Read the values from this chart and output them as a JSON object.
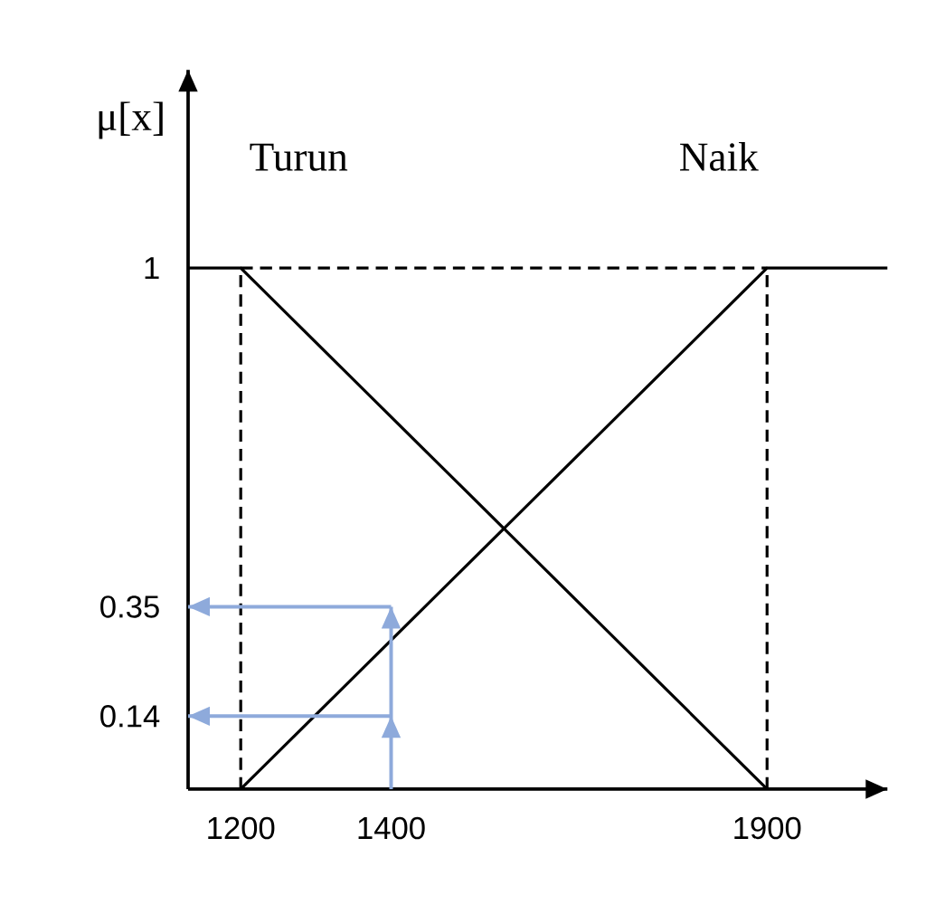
{
  "chart_data": {
    "type": "line",
    "ylabel": "μ[x]",
    "xlim": [
      1130,
      2060
    ],
    "ylim": [
      0,
      1.38
    ],
    "xticks": [
      1200,
      1400,
      1900
    ],
    "yticks": [
      0.14,
      0.35,
      1
    ],
    "grid": false,
    "legend": false,
    "marker": "none",
    "series": [
      {
        "name": "Turun",
        "color": "#000000",
        "x": [
          1130,
          1200,
          1900
        ],
        "values": [
          1,
          1,
          0
        ]
      },
      {
        "name": "Naik",
        "color": "#000000",
        "x": [
          1200,
          1900,
          2060
        ],
        "values": [
          0,
          1,
          1
        ]
      },
      {
        "color": "#000000",
        "line_style": "dashed",
        "x": [
          1200,
          1200
        ],
        "values": [
          0,
          1
        ]
      },
      {
        "color": "#000000",
        "line_style": "dashed",
        "x": [
          1900,
          1900
        ],
        "values": [
          0,
          1
        ]
      },
      {
        "color": "#000000",
        "line_style": "dashed",
        "x": [
          1200,
          1900
        ],
        "values": [
          1,
          1
        ]
      },
      {
        "color": "#8eaadb",
        "x": [
          1400,
          1400,
          1400
        ],
        "values": [
          0,
          0.14,
          0.35
        ]
      },
      {
        "color": "#8eaadb",
        "x": [
          1400,
          1130
        ],
        "values": [
          0.35,
          0.35
        ]
      },
      {
        "color": "#8eaadb",
        "x": [
          1400,
          1130
        ],
        "values": [
          0.14,
          0.14
        ]
      }
    ]
  }
}
